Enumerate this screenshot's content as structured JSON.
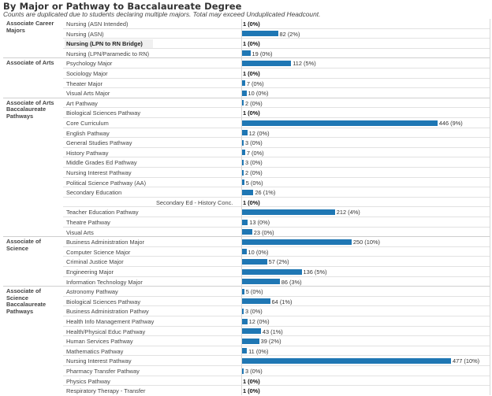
{
  "header": {
    "title": "By Major or Pathway to Baccalaureate Degree",
    "subtitle": "Counts are duplicated due to students declaring multiple majors.  Total may exceed Unduplicated Headcount."
  },
  "colors": {
    "bar": "#1f77b4",
    "highlight_row": "#f0f0f0"
  },
  "chart_data": {
    "type": "bar",
    "orientation": "horizontal",
    "title": "By Major or Pathway to Baccalaureate Degree",
    "subtitle": "Counts are duplicated due to students declaring multiple majors.  Total may exceed Unduplicated Headcount.",
    "xlim": [
      0,
      477
    ],
    "groups": [
      {
        "name": "Associate Career Majors",
        "rows": [
          {
            "label": "Nursing (ASN Intended)",
            "value": 1,
            "label_text": "1 (0%)"
          },
          {
            "label": "Nursing (ASN)",
            "value": 82,
            "label_text": "82 (2%)"
          },
          {
            "label": "Nursing (LPN to RN Bridge)",
            "value": 1,
            "label_text": "1 (0%)",
            "highlighted": true
          },
          {
            "label": "Nursing (LPN/Paramedic to RN)",
            "value": 19,
            "label_text": "19 (0%)"
          }
        ]
      },
      {
        "name": "Associate of Arts",
        "rows": [
          {
            "label": "Psychology Major",
            "value": 112,
            "label_text": "112 (5%)"
          },
          {
            "label": "Sociology Major",
            "value": 1,
            "label_text": "1 (0%)"
          },
          {
            "label": "Theater Major",
            "value": 7,
            "label_text": "7 (0%)"
          },
          {
            "label": "Visual Arts Major",
            "value": 10,
            "label_text": "10 (0%)"
          }
        ]
      },
      {
        "name": "Associate of Arts Baccalaureate Pathways",
        "rows": [
          {
            "label": "Art Pathway",
            "value": 2,
            "label_text": "2 (0%)"
          },
          {
            "label": "Biological Sciences Pathway",
            "value": 1,
            "label_text": "1 (0%)"
          },
          {
            "label": "Core Curriculum",
            "value": 446,
            "label_text": "446 (9%)"
          },
          {
            "label": "English Pathway",
            "value": 12,
            "label_text": "12 (0%)"
          },
          {
            "label": "General Studies Pathway",
            "value": 3,
            "label_text": "3 (0%)"
          },
          {
            "label": "History Pathway",
            "value": 7,
            "label_text": "7 (0%)"
          },
          {
            "label": "Middle Grades Ed Pathway",
            "value": 3,
            "label_text": "3 (0%)"
          },
          {
            "label": "Nursing Interest Pathway",
            "value": 2,
            "label_text": "2 (0%)"
          },
          {
            "label": "Political Science Pathway (AA)",
            "value": 5,
            "label_text": "5 (0%)"
          },
          {
            "label": "Secondary Education",
            "value": 26,
            "label_text": "26 (1%)"
          },
          {
            "label": "Secondary Ed - History Conc.",
            "value": 1,
            "label_text": "1 (0%)",
            "indent": true
          },
          {
            "label": "Teacher Education Pathway",
            "value": 212,
            "label_text": "212 (4%)"
          },
          {
            "label": "Theatre Pathway",
            "value": 13,
            "label_text": "13 (0%)"
          },
          {
            "label": "Visual Arts",
            "value": 23,
            "label_text": "23 (0%)"
          }
        ]
      },
      {
        "name": "Associate of Science",
        "rows": [
          {
            "label": "Business Administration Major",
            "value": 250,
            "label_text": "250 (10%)"
          },
          {
            "label": "Computer Science Major",
            "value": 10,
            "label_text": "10 (0%)"
          },
          {
            "label": "Criminal Justice Major",
            "value": 57,
            "label_text": "57 (2%)"
          },
          {
            "label": "Engineering Major",
            "value": 136,
            "label_text": "136 (5%)"
          },
          {
            "label": "Information Technology Major",
            "value": 86,
            "label_text": "86 (3%)"
          }
        ]
      },
      {
        "name": "Associate of Science Baccalaureate Pathways",
        "rows": [
          {
            "label": "Astronomy Pathway",
            "value": 5,
            "label_text": "5 (0%)"
          },
          {
            "label": "Biological Sciences Pathway",
            "value": 64,
            "label_text": "64 (1%)"
          },
          {
            "label": "Business Administration Pathwy",
            "value": 3,
            "label_text": "3 (0%)"
          },
          {
            "label": "Health Info Management Pathway",
            "value": 12,
            "label_text": "12 (0%)"
          },
          {
            "label": "Health/Physical Educ Pathway",
            "value": 43,
            "label_text": "43 (1%)"
          },
          {
            "label": "Human Services Pathway",
            "value": 39,
            "label_text": "39 (2%)"
          },
          {
            "label": "Mathematics Pathway",
            "value": 11,
            "label_text": "11 (0%)"
          },
          {
            "label": "Nursing Interest Pathway",
            "value": 477,
            "label_text": "477 (10%)"
          },
          {
            "label": "Pharmacy Transfer Pathway",
            "value": 3,
            "label_text": "3 (0%)"
          },
          {
            "label": "Physics Pathway",
            "value": 1,
            "label_text": "1 (0%)"
          },
          {
            "label": "Respiratory Therapy - Transfer",
            "value": 1,
            "label_text": "1 (0%)"
          }
        ]
      }
    ]
  }
}
